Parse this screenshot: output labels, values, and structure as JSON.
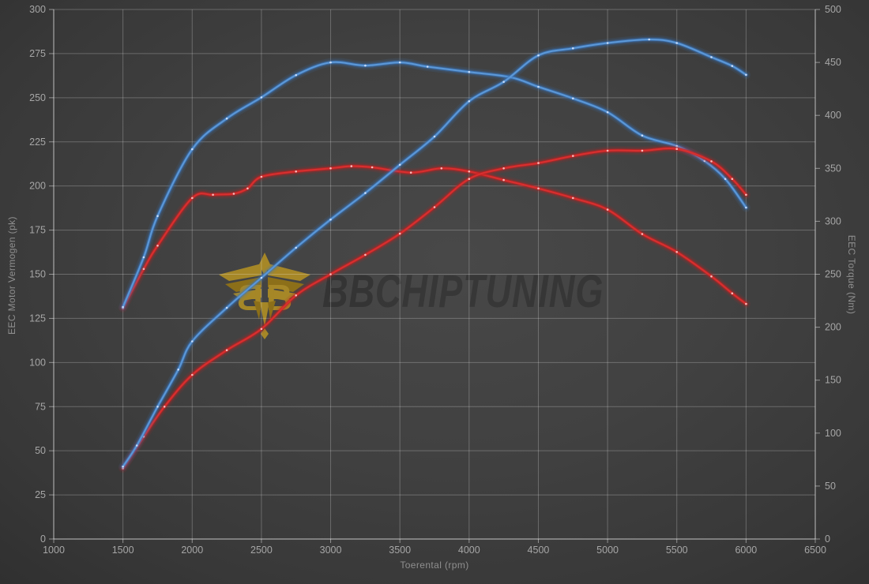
{
  "watermark": {
    "brand_bold": "BB",
    "brand_rest": "CHIPTUNING",
    "emblem_color": "#aa8a26",
    "emblem_color_dark": "#8f7118"
  },
  "chart_data": {
    "type": "line",
    "xlabel": "Toerental (rpm)",
    "ylabel_left": "EEC Motor Vermogen (pk)",
    "ylabel_right": "EEC Torque (Nm)",
    "x_range": [
      1000,
      6500
    ],
    "x_ticks": [
      1000,
      1500,
      2000,
      2500,
      3000,
      3500,
      4000,
      4500,
      5000,
      5500,
      6000,
      6500
    ],
    "y_left_range": [
      0,
      300
    ],
    "y_left_ticks": [
      0,
      25,
      50,
      75,
      100,
      125,
      150,
      175,
      200,
      225,
      250,
      275,
      300
    ],
    "y_right_range": [
      0,
      500
    ],
    "y_right_ticks": [
      0,
      50,
      100,
      150,
      200,
      250,
      300,
      350,
      400,
      450,
      500
    ],
    "grid": true,
    "legend": "none",
    "colors": {
      "blue_line": "#5f9ad8",
      "blue_glow": "#3a78c2",
      "blue_dot": "#d9e8ff",
      "red_line": "#d93030",
      "red_glow": "#c42222",
      "red_dot": "#ffd2d2",
      "gridline": "rgba(255,255,255,0.24)",
      "axis": "rgba(255,255,255,0.45)",
      "tick_text": "#a6a6a6"
    },
    "series": [
      {
        "name": "torque-original-red",
        "axis": "right",
        "unit": "Nm",
        "color": "red",
        "points": [
          [
            1500,
            218
          ],
          [
            1650,
            255
          ],
          [
            1750,
            277
          ],
          [
            2000,
            322
          ],
          [
            2150,
            325
          ],
          [
            2300,
            326
          ],
          [
            2400,
            331
          ],
          [
            2500,
            342
          ],
          [
            2750,
            347
          ],
          [
            3000,
            350
          ],
          [
            3150,
            352
          ],
          [
            3300,
            351
          ],
          [
            3580,
            346
          ],
          [
            3800,
            350
          ],
          [
            4000,
            347
          ],
          [
            4250,
            339
          ],
          [
            4500,
            331
          ],
          [
            4750,
            322
          ],
          [
            5000,
            311
          ],
          [
            5250,
            288
          ],
          [
            5500,
            271
          ],
          [
            5750,
            248
          ],
          [
            5900,
            232
          ],
          [
            6000,
            222
          ]
        ]
      },
      {
        "name": "torque-tuned-blue",
        "axis": "right",
        "unit": "Nm",
        "color": "blue",
        "points": [
          [
            1500,
            219
          ],
          [
            1650,
            266
          ],
          [
            1750,
            305
          ],
          [
            2000,
            368
          ],
          [
            2250,
            397
          ],
          [
            2500,
            417
          ],
          [
            2750,
            438
          ],
          [
            3000,
            450
          ],
          [
            3250,
            447
          ],
          [
            3500,
            450
          ],
          [
            3700,
            446
          ],
          [
            4000,
            441
          ],
          [
            4300,
            436
          ],
          [
            4500,
            427
          ],
          [
            4750,
            416
          ],
          [
            5000,
            403
          ],
          [
            5250,
            381
          ],
          [
            5500,
            371
          ],
          [
            5700,
            357
          ],
          [
            5850,
            340
          ],
          [
            6000,
            313
          ]
        ]
      },
      {
        "name": "power-original-red",
        "axis": "left",
        "unit": "pk",
        "color": "red",
        "points": [
          [
            1500,
            40
          ],
          [
            1650,
            58
          ],
          [
            1800,
            75
          ],
          [
            2000,
            93
          ],
          [
            2250,
            107
          ],
          [
            2500,
            119
          ],
          [
            2750,
            138
          ],
          [
            3000,
            150
          ],
          [
            3250,
            161
          ],
          [
            3500,
            173
          ],
          [
            3750,
            188
          ],
          [
            4000,
            204
          ],
          [
            4250,
            210
          ],
          [
            4500,
            213
          ],
          [
            4750,
            217
          ],
          [
            5000,
            220
          ],
          [
            5250,
            220
          ],
          [
            5500,
            221
          ],
          [
            5750,
            214
          ],
          [
            5900,
            204
          ],
          [
            6000,
            195
          ]
        ]
      },
      {
        "name": "power-tuned-blue",
        "axis": "left",
        "unit": "pk",
        "color": "blue",
        "points": [
          [
            1500,
            41
          ],
          [
            1600,
            53
          ],
          [
            1750,
            75
          ],
          [
            1900,
            96
          ],
          [
            2000,
            112
          ],
          [
            2250,
            131
          ],
          [
            2500,
            148
          ],
          [
            2750,
            165
          ],
          [
            3000,
            181
          ],
          [
            3250,
            196
          ],
          [
            3500,
            212
          ],
          [
            3750,
            228
          ],
          [
            4000,
            248
          ],
          [
            4250,
            259
          ],
          [
            4500,
            274
          ],
          [
            4750,
            278
          ],
          [
            5000,
            281
          ],
          [
            5300,
            283
          ],
          [
            5500,
            281
          ],
          [
            5750,
            273
          ],
          [
            5900,
            268
          ],
          [
            6000,
            263
          ]
        ]
      }
    ]
  }
}
